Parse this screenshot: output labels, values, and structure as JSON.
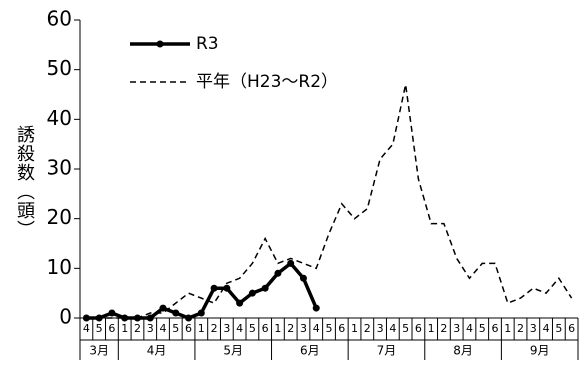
{
  "chart_data": {
    "type": "line",
    "y_label": "誘殺数（頭）",
    "categories": [
      "4",
      "5",
      "6",
      "1",
      "2",
      "3",
      "4",
      "5",
      "6",
      "1",
      "2",
      "3",
      "4",
      "5",
      "6",
      "1",
      "2",
      "3",
      "4",
      "5",
      "6",
      "1",
      "2",
      "3",
      "4",
      "5",
      "6",
      "1",
      "2",
      "3",
      "4",
      "5",
      "6",
      "1",
      "2",
      "3",
      "4",
      "5",
      "6"
    ],
    "months": [
      "3月",
      "4月",
      "5月",
      "6月",
      "7月",
      "8月",
      "9月"
    ],
    "series": [
      {
        "name": "R3",
        "color": "#000000",
        "style": "solid",
        "marker": true,
        "values": [
          0,
          0,
          1,
          0,
          0,
          0,
          2,
          1,
          0,
          1,
          6,
          6,
          3,
          5,
          6,
          9,
          11,
          8,
          2,
          null,
          null,
          null,
          null,
          null,
          null,
          null,
          null,
          null,
          null,
          null,
          null,
          null,
          null,
          null,
          null,
          null,
          null,
          null,
          null
        ]
      },
      {
        "name": "平年（H23～R2）",
        "color": "#000000",
        "style": "dashed",
        "marker": false,
        "values": [
          0,
          0,
          0,
          0,
          0,
          1,
          1,
          3,
          5,
          4,
          3,
          7,
          8,
          11,
          16,
          11,
          12,
          11,
          10,
          17,
          23,
          20,
          22,
          32,
          35,
          47,
          28,
          19,
          19,
          12,
          8,
          11,
          11,
          3,
          4,
          6,
          5,
          8,
          4
        ]
      }
    ],
    "ylim": [
      0,
      60
    ],
    "yticks": [
      0,
      10,
      20,
      30,
      40,
      50,
      60
    ],
    "legend": "upper-left"
  }
}
